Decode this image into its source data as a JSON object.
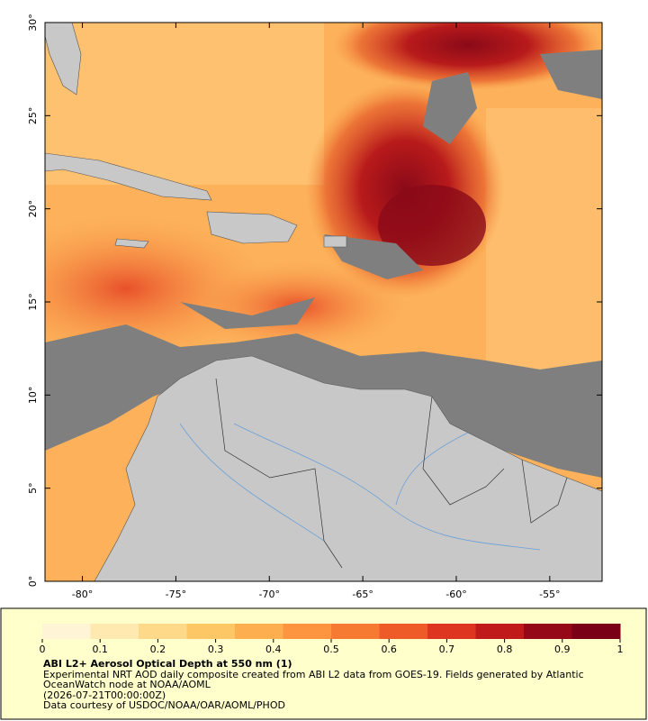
{
  "map": {
    "lon_lim": [
      -82,
      -52.2
    ],
    "lat_lim": [
      0,
      30
    ],
    "lon_ticks": [
      {
        "value": -80,
        "label": "-80°"
      },
      {
        "value": -75,
        "label": "-75°"
      },
      {
        "value": -70,
        "label": "-70°"
      },
      {
        "value": -65,
        "label": "-65°"
      },
      {
        "value": -60,
        "label": "-60°"
      },
      {
        "value": -55,
        "label": "-55°"
      }
    ],
    "lat_ticks": [
      {
        "value": 0,
        "label": "0°"
      },
      {
        "value": 5,
        "label": "5°"
      },
      {
        "value": 10,
        "label": "10°"
      },
      {
        "value": 15,
        "label": "15°"
      },
      {
        "value": 20,
        "label": "20°"
      },
      {
        "value": 25,
        "label": "25°"
      },
      {
        "value": 30,
        "label": "30°"
      }
    ]
  },
  "colorbar": {
    "lim": [
      0,
      1
    ],
    "ticks": [
      0,
      0.1,
      0.2,
      0.3,
      0.4,
      0.5,
      0.6,
      0.7,
      0.8,
      0.9,
      1
    ],
    "colors": [
      "#fff5d6",
      "#ffe9b0",
      "#fed98a",
      "#fec766",
      "#fdae4f",
      "#fc9440",
      "#f77a33",
      "#ee5a28",
      "#dd3520",
      "#c11a1a",
      "#950818",
      "#7a0018"
    ]
  },
  "caption": {
    "title": "ABI L2+ Aerosol Optical Depth at 550 nm (1)",
    "description": "Experimental NRT AOD daily composite created from ABI L2 data from GOES-19. Fields generated by Atlantic OceanWatch node at NOAA/AOML",
    "timestamp": "(2026-07-21T00:00:00Z)",
    "credit": "Data courtesy of USDOC/NOAA/OAR/AOML/PHOD"
  }
}
